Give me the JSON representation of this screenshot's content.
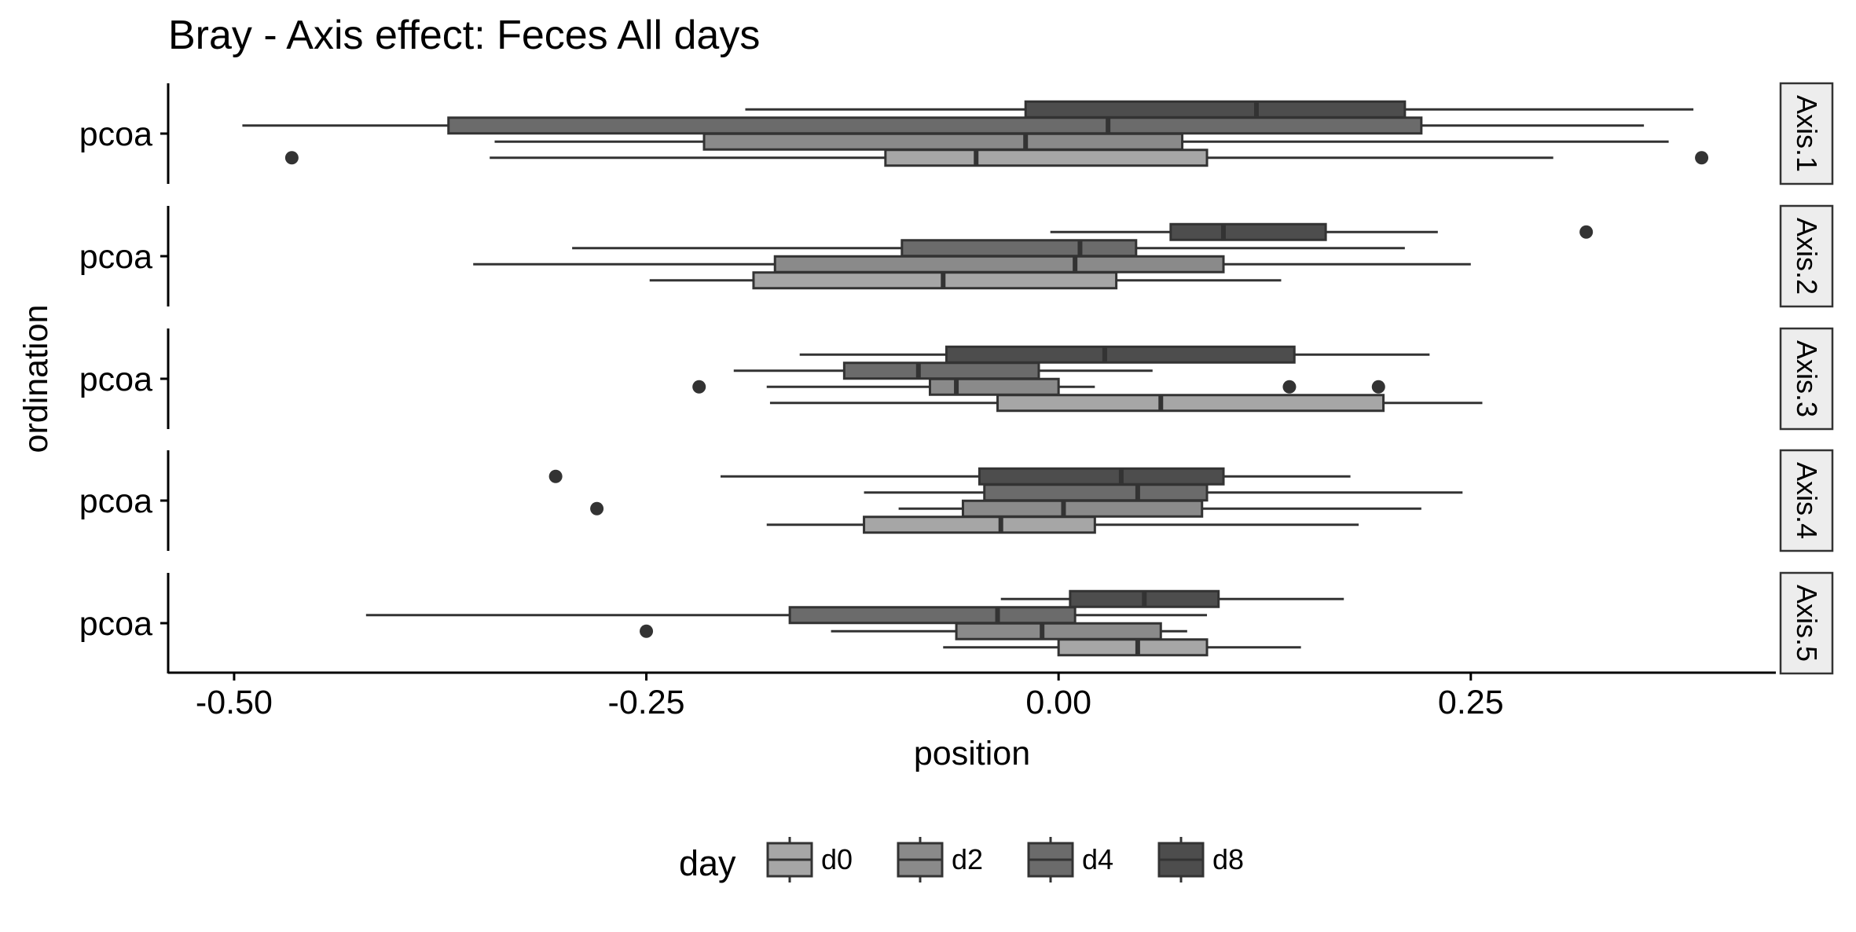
{
  "chart_data": {
    "type": "boxplot",
    "title": "Bray - Axis effect: Feces All days",
    "xlabel": "position",
    "ylabel": "ordination",
    "xlim": [
      -0.54,
      0.435
    ],
    "xticks": [
      -0.5,
      -0.25,
      0.0,
      0.25
    ],
    "xtick_labels": [
      "-0.50",
      "-0.25",
      "0.00",
      "0.25"
    ],
    "legend": {
      "title": "day",
      "position": "bottom",
      "items": [
        "d0",
        "d2",
        "d4",
        "d8"
      ]
    },
    "grid": false,
    "colors": {
      "d0": "#a6a6a6",
      "d2": "#8a8a8a",
      "d4": "#6b6b6b",
      "d8": "#4d4d4d",
      "outline": "#333333",
      "strip_fill": "#ededed"
    },
    "panels": [
      {
        "strip": "Axis.1",
        "ytick": "pcoa",
        "boxes": {
          "d0": {
            "whisker_low": -0.345,
            "q1": -0.105,
            "median": -0.05,
            "q3": 0.09,
            "whisker_high": 0.3,
            "outliers": [
              -0.465,
              0.39
            ]
          },
          "d2": {
            "whisker_low": -0.342,
            "q1": -0.215,
            "median": -0.02,
            "q3": 0.075,
            "whisker_high": 0.37,
            "outliers": []
          },
          "d4": {
            "whisker_low": -0.495,
            "q1": -0.37,
            "median": 0.03,
            "q3": 0.22,
            "whisker_high": 0.355,
            "outliers": []
          },
          "d8": {
            "whisker_low": -0.19,
            "q1": -0.02,
            "median": 0.12,
            "q3": 0.21,
            "whisker_high": 0.385,
            "outliers": []
          }
        }
      },
      {
        "strip": "Axis.2",
        "ytick": "pcoa",
        "boxes": {
          "d0": {
            "whisker_low": -0.248,
            "q1": -0.185,
            "median": -0.07,
            "q3": 0.035,
            "whisker_high": 0.135,
            "outliers": []
          },
          "d2": {
            "whisker_low": -0.355,
            "q1": -0.172,
            "median": 0.01,
            "q3": 0.1,
            "whisker_high": 0.25,
            "outliers": []
          },
          "d4": {
            "whisker_low": -0.295,
            "q1": -0.095,
            "median": 0.013,
            "q3": 0.047,
            "whisker_high": 0.21,
            "outliers": []
          },
          "d8": {
            "whisker_low": -0.005,
            "q1": 0.068,
            "median": 0.1,
            "q3": 0.162,
            "whisker_high": 0.23,
            "outliers": [
              0.32
            ]
          }
        }
      },
      {
        "strip": "Axis.3",
        "ytick": "pcoa",
        "boxes": {
          "d0": {
            "whisker_low": -0.175,
            "q1": -0.037,
            "median": 0.062,
            "q3": 0.197,
            "whisker_high": 0.257,
            "outliers": []
          },
          "d2": {
            "whisker_low": -0.177,
            "q1": -0.078,
            "median": -0.062,
            "q3": 0.0,
            "whisker_high": 0.022,
            "outliers": [
              -0.218,
              0.14,
              0.194
            ]
          },
          "d4": {
            "whisker_low": -0.197,
            "q1": -0.13,
            "median": -0.085,
            "q3": -0.012,
            "whisker_high": 0.057,
            "outliers": []
          },
          "d8": {
            "whisker_low": -0.157,
            "q1": -0.068,
            "median": 0.028,
            "q3": 0.143,
            "whisker_high": 0.225,
            "outliers": []
          }
        }
      },
      {
        "strip": "Axis.4",
        "ytick": "pcoa",
        "boxes": {
          "d0": {
            "whisker_low": -0.177,
            "q1": -0.118,
            "median": -0.035,
            "q3": 0.022,
            "whisker_high": 0.182,
            "outliers": []
          },
          "d2": {
            "whisker_low": -0.097,
            "q1": -0.058,
            "median": 0.003,
            "q3": 0.087,
            "whisker_high": 0.22,
            "outliers": [
              -0.28
            ]
          },
          "d4": {
            "whisker_low": -0.118,
            "q1": -0.045,
            "median": 0.048,
            "q3": 0.09,
            "whisker_high": 0.245,
            "outliers": []
          },
          "d8": {
            "whisker_low": -0.205,
            "q1": -0.048,
            "median": 0.038,
            "q3": 0.1,
            "whisker_high": 0.177,
            "outliers": [
              -0.305
            ]
          }
        }
      },
      {
        "strip": "Axis.5",
        "ytick": "pcoa",
        "boxes": {
          "d0": {
            "whisker_low": -0.07,
            "q1": 0.0,
            "median": 0.048,
            "q3": 0.09,
            "whisker_high": 0.147,
            "outliers": []
          },
          "d2": {
            "whisker_low": -0.138,
            "q1": -0.062,
            "median": -0.01,
            "q3": 0.062,
            "whisker_high": 0.078,
            "outliers": [
              -0.25
            ]
          },
          "d4": {
            "whisker_low": -0.42,
            "q1": -0.163,
            "median": -0.037,
            "q3": 0.01,
            "whisker_high": 0.09,
            "outliers": []
          },
          "d8": {
            "whisker_low": -0.035,
            "q1": 0.007,
            "median": 0.052,
            "q3": 0.097,
            "whisker_high": 0.173,
            "outliers": []
          }
        }
      }
    ]
  }
}
